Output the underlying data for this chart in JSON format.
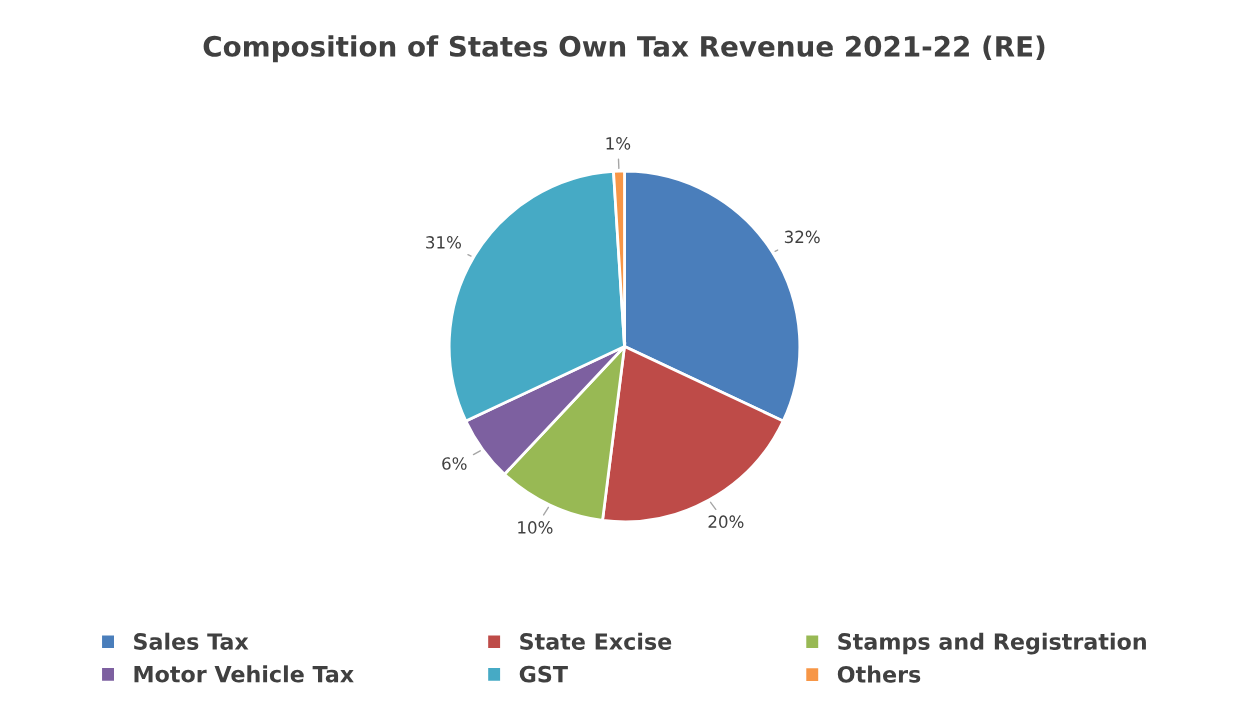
{
  "chart_data": {
    "type": "pie",
    "title": "Composition of States Own Tax Revenue 2021-22 (RE)",
    "categories": [
      "Sales Tax",
      "State Excise",
      "Stamps and Registration",
      "Motor Vehicle Tax",
      "GST",
      "Others"
    ],
    "values": [
      32,
      20,
      10,
      6,
      31,
      1
    ],
    "colors": [
      "#4a7ebb",
      "#be4b48",
      "#98b954",
      "#7d60a0",
      "#46aac5",
      "#f79646"
    ],
    "value_labels": [
      "32%",
      "20%",
      "10%",
      "6%",
      "31%",
      "1%"
    ],
    "legend": "bottom"
  }
}
